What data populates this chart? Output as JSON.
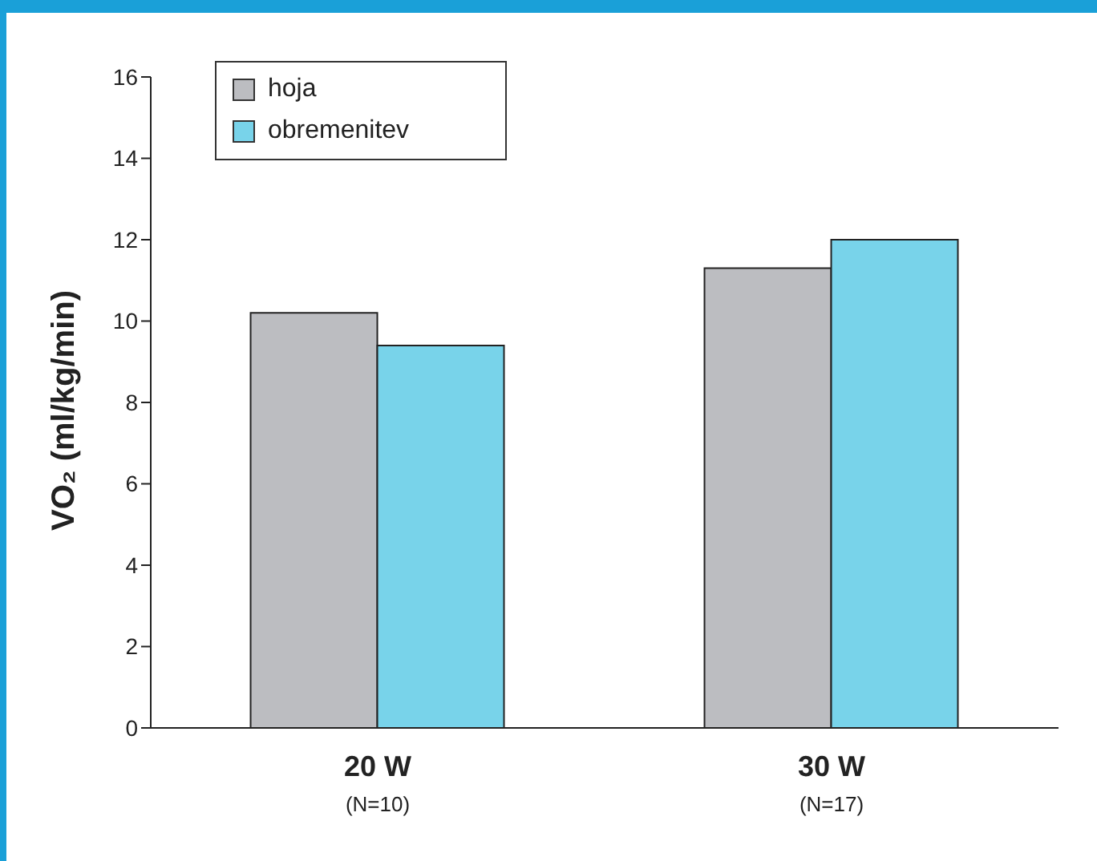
{
  "chart_data": {
    "type": "bar",
    "ylabel": "VO₂ (ml/kg/min)",
    "categories": [
      "20 W\n(N=10)",
      "30 W\n(N=17)"
    ],
    "series": [
      {
        "name": "hoja",
        "color": "#bcbdc1",
        "values": [
          10.2,
          11.3
        ]
      },
      {
        "name": "obremenitev",
        "color": "#78d3ea",
        "values": [
          9.4,
          12.0
        ]
      }
    ],
    "ylim": [
      0,
      16
    ],
    "yticks": [
      0,
      2,
      4,
      6,
      8,
      10,
      12,
      14,
      16
    ],
    "grid": false,
    "legend": "top left"
  }
}
